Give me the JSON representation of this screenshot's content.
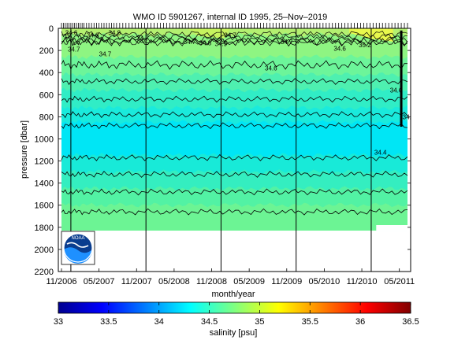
{
  "chart_data": {
    "type": "heatmap",
    "title": "WMO ID 5901267, internal ID 1995, 25–Nov–2019",
    "xlabel": "month/year",
    "ylabel": "pressure [dbar]",
    "x_tick_labels": [
      "11/2006",
      "05/2007",
      "11/2007",
      "05/2008",
      "11/2008",
      "05/2009",
      "11/2009",
      "05/2010",
      "11/2010",
      "05/2011"
    ],
    "y_tick_labels": [
      "0",
      "200",
      "400",
      "600",
      "800",
      "1000",
      "1200",
      "1400",
      "1600",
      "1800",
      "2000",
      "2200"
    ],
    "ylim": [
      2200,
      0
    ],
    "xlim": [
      "11/2006",
      "06/2011"
    ],
    "data_max_pressure": 1830,
    "colorbar": {
      "label": "salinity [psu]",
      "min": 33,
      "max": 36.5,
      "tick_labels": [
        "33",
        "33.5",
        "34",
        "34.5",
        "35",
        "35.5",
        "36",
        "36.5"
      ],
      "colors": [
        "#00008f",
        "#0000ff",
        "#0080ff",
        "#00ffff",
        "#80ff80",
        "#ffff00",
        "#ff8000",
        "#ff0000",
        "#800000"
      ]
    },
    "contour_labels": [
      {
        "text": "34.6",
        "month": 0.6,
        "pressure": 40
      },
      {
        "text": "34.6",
        "month": 4.0,
        "pressure": 60
      },
      {
        "text": "34.7",
        "month": 1.0,
        "pressure": 190
      },
      {
        "text": "34.8",
        "month": 7.5,
        "pressure": 40
      },
      {
        "text": "34.7",
        "month": 12.0,
        "pressure": 90
      },
      {
        "text": "34.7",
        "month": 6.0,
        "pressure": 230
      },
      {
        "text": "34.7",
        "month": 19.5,
        "pressure": 120
      },
      {
        "text": "34.7",
        "month": 26.0,
        "pressure": 60
      },
      {
        "text": "34.8",
        "month": 22.0,
        "pressure": 130
      },
      {
        "text": "34.9",
        "month": 24.5,
        "pressure": 140
      },
      {
        "text": "34.6",
        "month": 32.5,
        "pressure": 360
      },
      {
        "text": "34.7",
        "month": 35.0,
        "pressure": 120
      },
      {
        "text": "34.6",
        "month": 43.5,
        "pressure": 180
      },
      {
        "text": "34.6",
        "month": 52.5,
        "pressure": 560
      },
      {
        "text": "34.6",
        "month": 57.0,
        "pressure": 690
      },
      {
        "text": "34.2",
        "month": 54.5,
        "pressure": 800
      },
      {
        "text": "34.4",
        "month": 50.0,
        "pressure": 1120
      },
      {
        "text": "35.2",
        "month": 47.5,
        "pressure": 150
      }
    ],
    "float_cycle_months": [
      0.0,
      0.3,
      0.6,
      0.9,
      1.2,
      1.5,
      1.8,
      2.1,
      2.4,
      2.7,
      3.0,
      3.3,
      3.6,
      4.0,
      4.4,
      4.8,
      5.2,
      5.6,
      6.0,
      6.4,
      6.8,
      7.2,
      7.6,
      8.0,
      8.4,
      8.8,
      9.3,
      9.8,
      10.3,
      10.8,
      11.3,
      11.8,
      12.3,
      12.8,
      13.3,
      13.8,
      14.3,
      14.8,
      15.3,
      15.8,
      16.3,
      16.8,
      17.3,
      17.8,
      18.3,
      18.8,
      19.3,
      19.8,
      20.3,
      20.8,
      21.3,
      21.8,
      22.3,
      22.8,
      23.3,
      23.8,
      24.3,
      24.8,
      25.3,
      25.8,
      26.3,
      26.8,
      27.3,
      27.8,
      28.3,
      28.8,
      29.3,
      29.8,
      30.3,
      30.8,
      31.3,
      31.8,
      32.3,
      32.8,
      33.3,
      33.8,
      34.3,
      34.8,
      35.3,
      35.8,
      36.3,
      36.8,
      37.3,
      37.8,
      38.3,
      38.8,
      39.3,
      39.8,
      40.3,
      40.8,
      41.3,
      41.8,
      42.3,
      42.8,
      43.3,
      43.8,
      44.3,
      44.8,
      45.3,
      45.8,
      46.3,
      46.8,
      47.3,
      47.8,
      48.3,
      48.8,
      49.3,
      49.8,
      50.3,
      50.8,
      51.3,
      51.8,
      52.3,
      52.8,
      53.3,
      53.8,
      54.3,
      54.8,
      55.3
    ],
    "vertical_lines_months": [
      1.5,
      13.5,
      25.5,
      37.5,
      49.5
    ]
  },
  "logo": {
    "text": "NOAA"
  }
}
